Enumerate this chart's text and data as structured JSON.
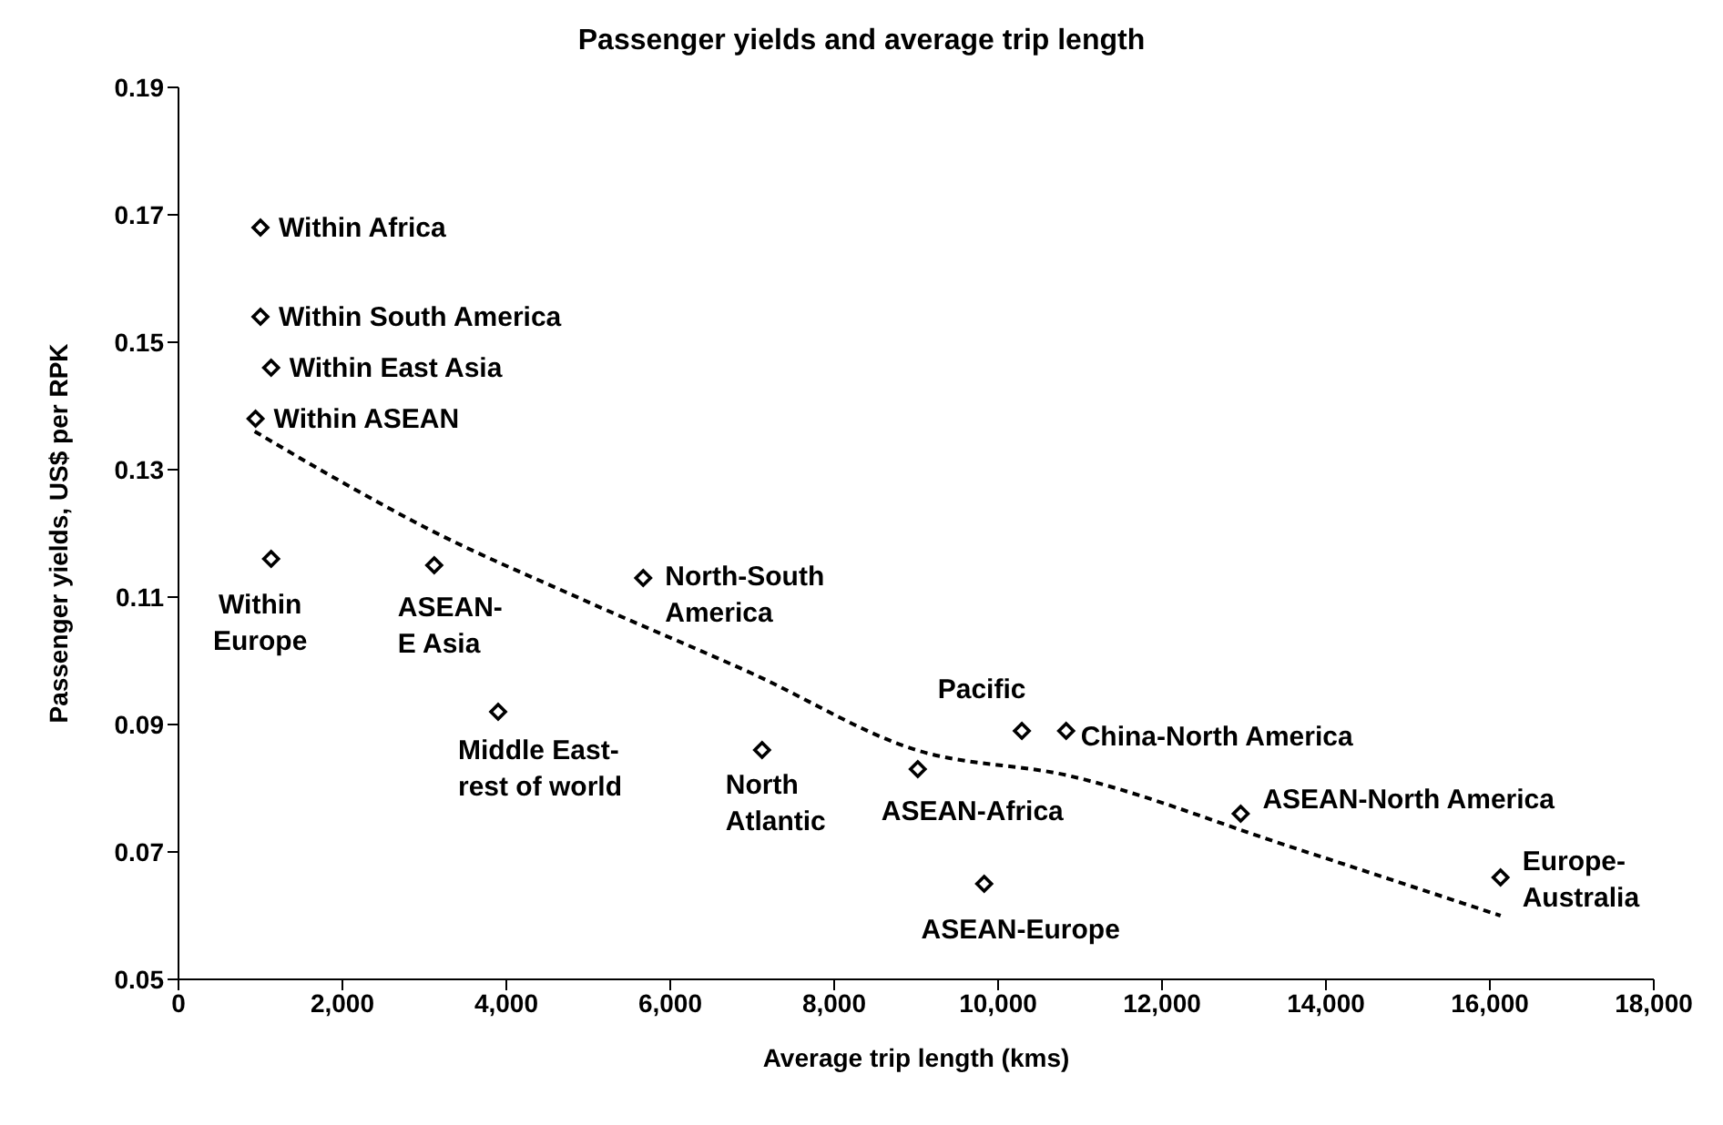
{
  "chart_data": {
    "type": "scatter",
    "title": "Passenger yields and average trip length",
    "xlabel": "Average trip length (kms)",
    "ylabel": "Passenger yields, US$ per RPK",
    "xlim": [
      0,
      18000
    ],
    "xticks": [
      0,
      {
        "value": 2000,
        "label": "2,000"
      },
      {
        "value": 4000,
        "label": "4,000"
      },
      {
        "value": 6000,
        "label": "6,000"
      },
      {
        "value": 8000,
        "label": "8,000"
      },
      {
        "value": 10000,
        "label": "10,000"
      },
      {
        "value": 12000,
        "label": "12,000"
      },
      {
        "value": 14000,
        "label": "14,000"
      },
      {
        "value": 16000,
        "label": "16,000"
      },
      {
        "value": 18000,
        "label": "18,000"
      }
    ],
    "ylim": [
      0.05,
      0.19
    ],
    "yticks": [
      0.05,
      0.07,
      0.09,
      0.11,
      0.13,
      0.15,
      0.17,
      0.19
    ],
    "grid": false,
    "legend": false,
    "marker": "diamond",
    "series": [
      {
        "type": "scatter",
        "color": "#000000",
        "x": [
          1000,
          1000,
          1130,
          940,
          1130,
          3120,
          3900,
          5670,
          7120,
          9020,
          10290,
          10830,
          12960,
          9830,
          16130
        ],
        "values": [
          0.168,
          0.154,
          0.146,
          0.138,
          0.116,
          0.115,
          0.092,
          0.113,
          0.086,
          0.083,
          0.089,
          0.089,
          0.076,
          0.065,
          0.066
        ]
      },
      {
        "type": "line",
        "color": "#000000",
        "line_style": "dashed",
        "marker": "none",
        "x": [
          930,
          2000,
          3000,
          4950,
          7000,
          9000,
          10850,
          13570,
          16130
        ],
        "values": [
          0.136,
          0.128,
          0.121,
          0.1095,
          0.098,
          0.086,
          0.082,
          0.0708,
          0.06
        ]
      }
    ],
    "annotations": [
      {
        "text": "Within Africa",
        "x": 1000,
        "y": 0.168
      },
      {
        "text": "Within South America",
        "x": 1000,
        "y": 0.154
      },
      {
        "text": "Within East Asia",
        "x": 1130,
        "y": 0.146
      },
      {
        "text": "Within ASEAN",
        "x": 940,
        "y": 0.138
      },
      {
        "text": "Within\nEurope",
        "x": 1130,
        "y": 0.116
      },
      {
        "text": "ASEAN-\nE Asia",
        "x": 3120,
        "y": 0.115
      },
      {
        "text": "Middle East-\nrest of world",
        "x": 3900,
        "y": 0.092
      },
      {
        "text": "North-South\nAmerica",
        "x": 5670,
        "y": 0.113
      },
      {
        "text": "North\nAtlantic",
        "x": 7120,
        "y": 0.086
      },
      {
        "text": "ASEAN-Africa",
        "x": 9020,
        "y": 0.083
      },
      {
        "text": "Pacific",
        "x": 10290,
        "y": 0.089
      },
      {
        "text": "China-North America",
        "x": 10830,
        "y": 0.089
      },
      {
        "text": "ASEAN-North America",
        "x": 12960,
        "y": 0.076
      },
      {
        "text": "ASEAN-Europe",
        "x": 9830,
        "y": 0.065
      },
      {
        "text": "Europe-\nAustralia",
        "x": 16130,
        "y": 0.066
      }
    ]
  }
}
